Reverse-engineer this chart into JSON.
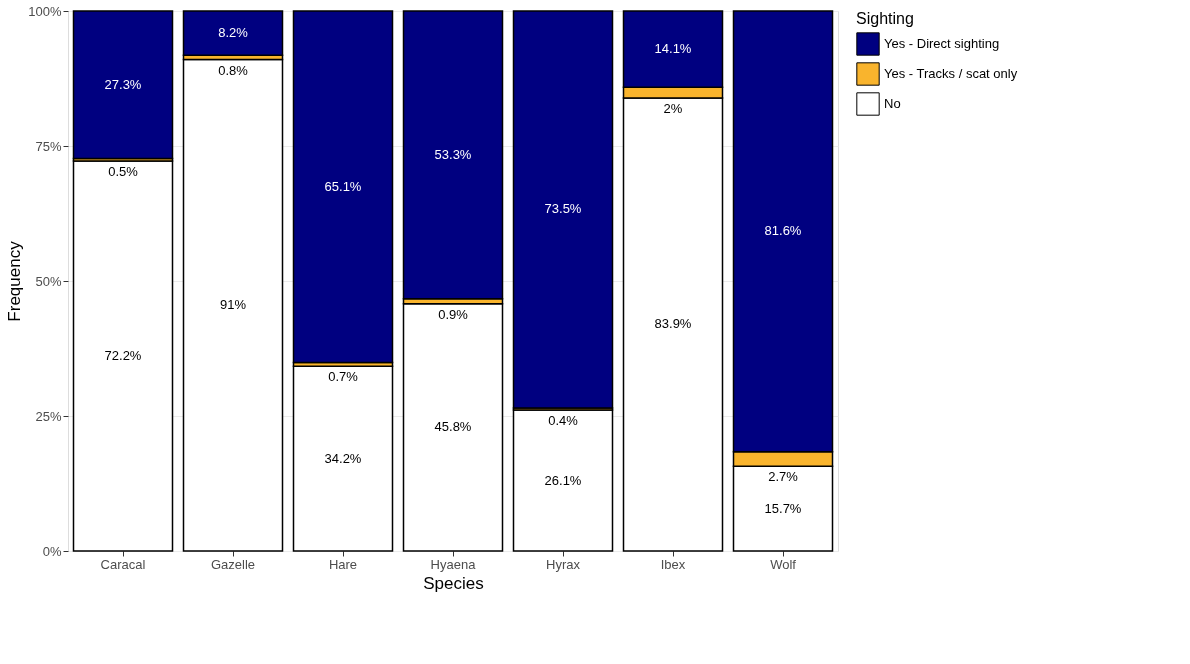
{
  "chart_data": {
    "type": "bar",
    "stacked": true,
    "xlabel": "Species",
    "ylabel": "Frequency",
    "legend_title": "Sighting",
    "legend": "right",
    "grid": true,
    "categories": [
      "Caracal",
      "Gazelle",
      "Hare",
      "Hyaena",
      "Hyrax",
      "Ibex",
      "Wolf"
    ],
    "ylim": [
      0,
      100
    ],
    "yticks": [
      {
        "value": 0,
        "label": "0%"
      },
      {
        "value": 25,
        "label": "25%"
      },
      {
        "value": 50,
        "label": "50%"
      },
      {
        "value": 75,
        "label": "75%"
      },
      {
        "value": 100,
        "label": "100%"
      }
    ],
    "series": [
      {
        "name": "No",
        "color": "#ffffff",
        "values": [
          72.2,
          91,
          34.2,
          45.8,
          26.1,
          83.9,
          15.7
        ],
        "value_labels": [
          "72.2%",
          "91%",
          "34.2%",
          "45.8%",
          "26.1%",
          "83.9%",
          "15.7%"
        ]
      },
      {
        "name": "Yes - Tracks / scat only",
        "color": "#f9b42d",
        "values": [
          0.5,
          0.8,
          0.7,
          0.9,
          0.4,
          2,
          2.7
        ],
        "value_labels": [
          "0.5%",
          "0.8%",
          "0.7%",
          "0.9%",
          "0.4%",
          "2%",
          "2.7%"
        ]
      },
      {
        "name": "Yes - Direct sighting",
        "color": "#000080",
        "values": [
          27.3,
          8.2,
          65.1,
          53.3,
          73.5,
          14.1,
          81.6
        ],
        "value_labels": [
          "27.3%",
          "8.2%",
          "65.1%",
          "53.3%",
          "73.5%",
          "14.1%",
          "81.6%"
        ]
      }
    ]
  }
}
